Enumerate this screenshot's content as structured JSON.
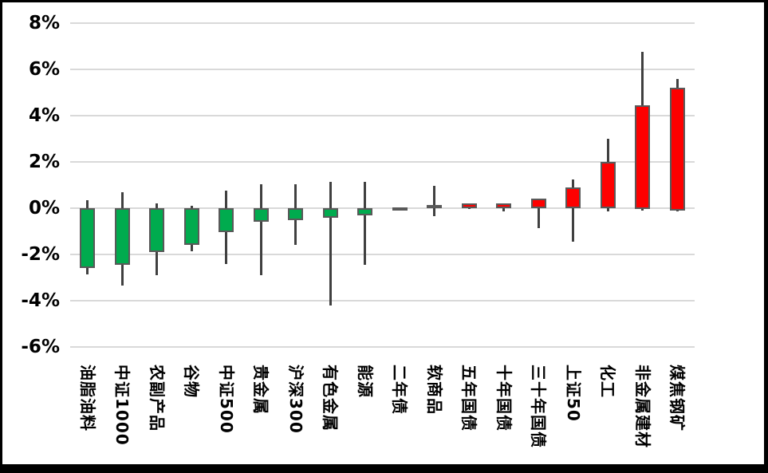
{
  "chart_data": {
    "type": "candlestick",
    "title": "",
    "unit": "%",
    "ylim": [
      -6,
      8
    ],
    "grid": true,
    "ytick_labels": [
      "8%",
      "6%",
      "4%",
      "2%",
      "0%",
      "-2%",
      "-4%",
      "-6%"
    ],
    "ytick_values": [
      8,
      6,
      4,
      2,
      0,
      -2,
      -4,
      -6
    ],
    "up_color": "#fe0000",
    "down_color": "#00ab4e",
    "wick_color": "#404040",
    "body_border_color": "#595959",
    "gridline_color": "#d9d9d9",
    "categories": [
      "油脂油料",
      "中证1000",
      "农副产品",
      "谷物",
      "中证500",
      "贵金属",
      "沪深300",
      "有色金属",
      "能源",
      "二年债",
      "软商品",
      "五年国债",
      "十年国债",
      "三十年国债",
      "上证50",
      "化工",
      "非金属建材",
      "煤焦钢矿"
    ],
    "series": [
      {
        "label": "油脂油料",
        "open": 0,
        "close": -2.6,
        "high": 0.35,
        "low": -2.85
      },
      {
        "label": "中证1000",
        "open": 0,
        "close": -2.45,
        "high": 0.7,
        "low": -3.35
      },
      {
        "label": "农副产品",
        "open": 0,
        "close": -1.9,
        "high": 0.2,
        "low": -2.9
      },
      {
        "label": "谷物",
        "open": 0,
        "close": -1.6,
        "high": 0.1,
        "low": -1.85
      },
      {
        "label": "中证500",
        "open": 0,
        "close": -1.05,
        "high": 0.75,
        "low": -2.4
      },
      {
        "label": "贵金属",
        "open": 0,
        "close": -0.6,
        "high": 1.05,
        "low": -2.9
      },
      {
        "label": "沪深300",
        "open": 0,
        "close": -0.5,
        "high": 1.05,
        "low": -1.6
      },
      {
        "label": "有色金属",
        "open": 0,
        "close": -0.4,
        "high": 1.15,
        "low": -4.2
      },
      {
        "label": "能源",
        "open": 0,
        "close": -0.3,
        "high": 1.15,
        "low": -2.45
      },
      {
        "label": "二年债",
        "open": 0,
        "close": 0.05,
        "high": 0.05,
        "low": 0
      },
      {
        "label": "软商品",
        "open": 0,
        "close": 0.15,
        "high": 0.95,
        "low": -0.35
      },
      {
        "label": "五年国债",
        "open": 0,
        "close": 0.2,
        "high": 0.2,
        "low": -0.05
      },
      {
        "label": "十年国债",
        "open": 0,
        "close": 0.2,
        "high": 0.2,
        "low": -0.15
      },
      {
        "label": "三十年国债",
        "open": 0,
        "close": 0.4,
        "high": 0.4,
        "low": -0.85
      },
      {
        "label": "上证50",
        "open": 0,
        "close": 0.9,
        "high": 1.25,
        "low": -1.45
      },
      {
        "label": "化工",
        "open": 0,
        "close": 2.0,
        "high": 3.0,
        "low": -0.15
      },
      {
        "label": "非金属建材",
        "open": -0.05,
        "close": 4.45,
        "high": 6.75,
        "low": -0.1
      },
      {
        "label": "煤焦钢矿",
        "open": -0.1,
        "close": 5.2,
        "high": 5.6,
        "low": -0.15
      }
    ],
    "legend": []
  }
}
